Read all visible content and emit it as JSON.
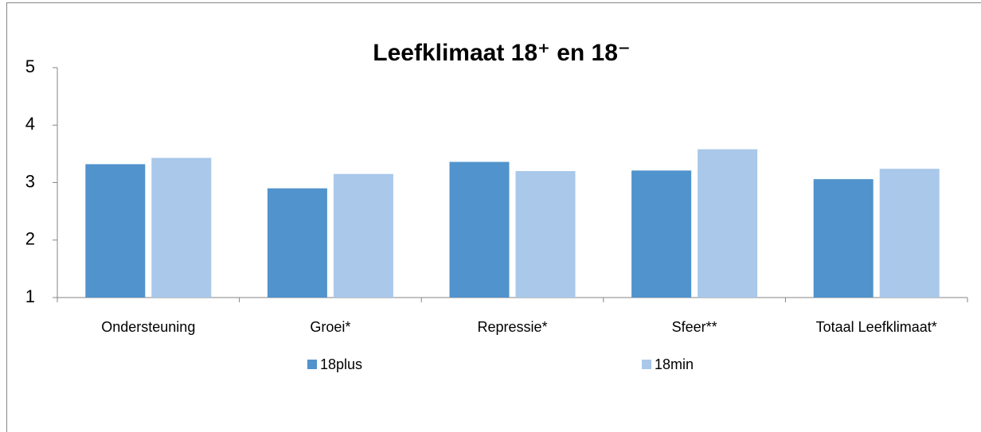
{
  "chart_data": {
    "type": "bar",
    "title": "Leefklimaat 18⁺ en 18⁻",
    "categories": [
      "Ondersteuning",
      "Groei*",
      "Repressie*",
      "Sfeer**",
      "Totaal Leefklimaat*"
    ],
    "series": [
      {
        "name": "18plus",
        "color": "#5193cc",
        "values": [
          3.32,
          2.9,
          3.36,
          3.21,
          3.06
        ]
      },
      {
        "name": "18min",
        "color": "#a9c8ea",
        "values": [
          3.43,
          3.15,
          3.2,
          3.58,
          3.24
        ]
      }
    ],
    "ylim": [
      1,
      5
    ],
    "yticks": [
      1,
      2,
      3,
      4,
      5
    ],
    "grid": false,
    "legend": "bottom"
  }
}
